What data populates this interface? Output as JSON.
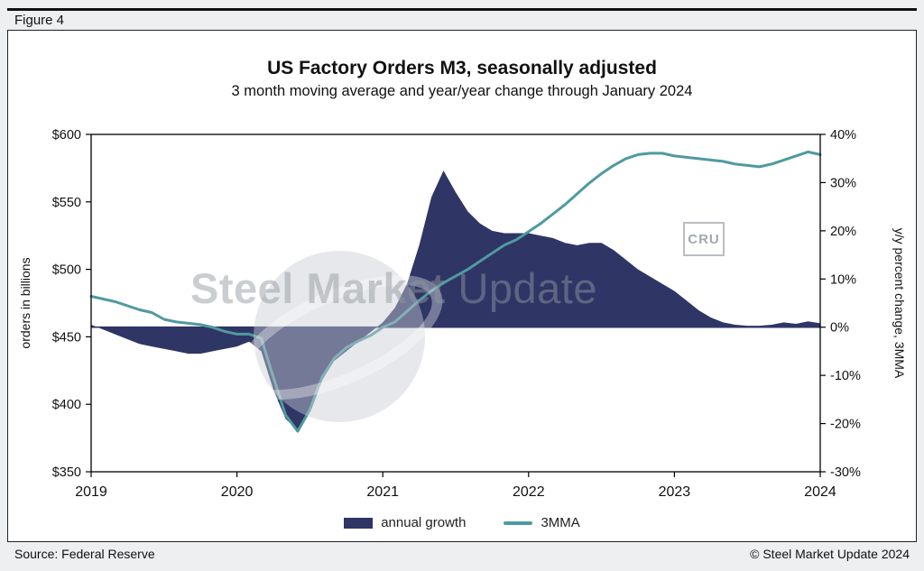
{
  "figure": {
    "label": "Figure 4"
  },
  "footer": {
    "source": "Source: Federal Reserve",
    "copyright": "© Steel Market Update 2024"
  },
  "watermark": {
    "brand_bold": "Steel Market",
    "brand_light": " Update",
    "badge": "CRU"
  },
  "chart_data": {
    "type": "combo-area-line",
    "title": "US Factory Orders M3, seasonally adjusted",
    "subtitle": "3 month moving average and year/year change through January 2024",
    "x_start_year": 2019,
    "x_months_per_point": 1,
    "x_end_label": "January 2024",
    "grid": "off",
    "legend_position": "bottom",
    "x_axis_ticks": [
      {
        "label": "2019",
        "value": 2019
      },
      {
        "label": "2020",
        "value": 2020
      },
      {
        "label": "2021",
        "value": 2021
      },
      {
        "label": "2022",
        "value": 2022
      },
      {
        "label": "2023",
        "value": 2023
      },
      {
        "label": "2024",
        "value": 2024
      }
    ],
    "left_axis": {
      "label": "orders in billions",
      "min": 350,
      "max": 600,
      "ticks": [
        {
          "label": "$350",
          "value": 350
        },
        {
          "label": "$400",
          "value": 400
        },
        {
          "label": "$450",
          "value": 450
        },
        {
          "label": "$500",
          "value": 500
        },
        {
          "label": "$550",
          "value": 550
        },
        {
          "label": "$600",
          "value": 600
        }
      ]
    },
    "right_axis": {
      "label": "y/y percent change, 3MMA",
      "min": -30,
      "max": 40,
      "ticks": [
        {
          "label": "-30%",
          "value": -30
        },
        {
          "label": "-20%",
          "value": -20
        },
        {
          "label": "-10%",
          "value": -10
        },
        {
          "label": "0%",
          "value": 0
        },
        {
          "label": "10%",
          "value": 10
        },
        {
          "label": "20%",
          "value": 20
        },
        {
          "label": "30%",
          "value": 30
        },
        {
          "label": "40%",
          "value": 40
        }
      ]
    },
    "series": [
      {
        "name": "annual growth",
        "type": "area",
        "axis": "right",
        "color": "#2f3564",
        "values": [
          0.5,
          -0.5,
          -1.5,
          -2.5,
          -3.5,
          -4,
          -4.5,
          -5,
          -5.5,
          -5.5,
          -5,
          -4.5,
          -4,
          -3,
          -5,
          -13,
          -19,
          -21.5,
          -17,
          -11,
          -7,
          -5,
          -3,
          -1,
          1,
          4,
          9,
          17,
          27,
          32.5,
          28,
          24,
          21.5,
          20,
          19.5,
          19.5,
          19.5,
          19,
          18.5,
          17.5,
          17,
          17.5,
          17.5,
          16,
          14,
          12,
          10.5,
          9,
          7.5,
          5.5,
          3.5,
          2,
          1,
          0.5,
          0.3,
          0.3,
          0.5,
          1,
          0.7,
          1.2,
          0.8
        ]
      },
      {
        "name": "3MMA",
        "type": "line",
        "axis": "left",
        "color": "#4f9aa0",
        "values": [
          480,
          478,
          476,
          473,
          470,
          468,
          463,
          461,
          460,
          459,
          457,
          454,
          452,
          452,
          449,
          420,
          392,
          380,
          396,
          420,
          434,
          442,
          447,
          451,
          457,
          461,
          469,
          477,
          484,
          490,
          495,
          500,
          506,
          512,
          518,
          522,
          528,
          534,
          541,
          548,
          556,
          564,
          571,
          577,
          582,
          585,
          586,
          586,
          584,
          583,
          582,
          581,
          580,
          578,
          577,
          576,
          578,
          581,
          584,
          587,
          585
        ]
      }
    ]
  }
}
